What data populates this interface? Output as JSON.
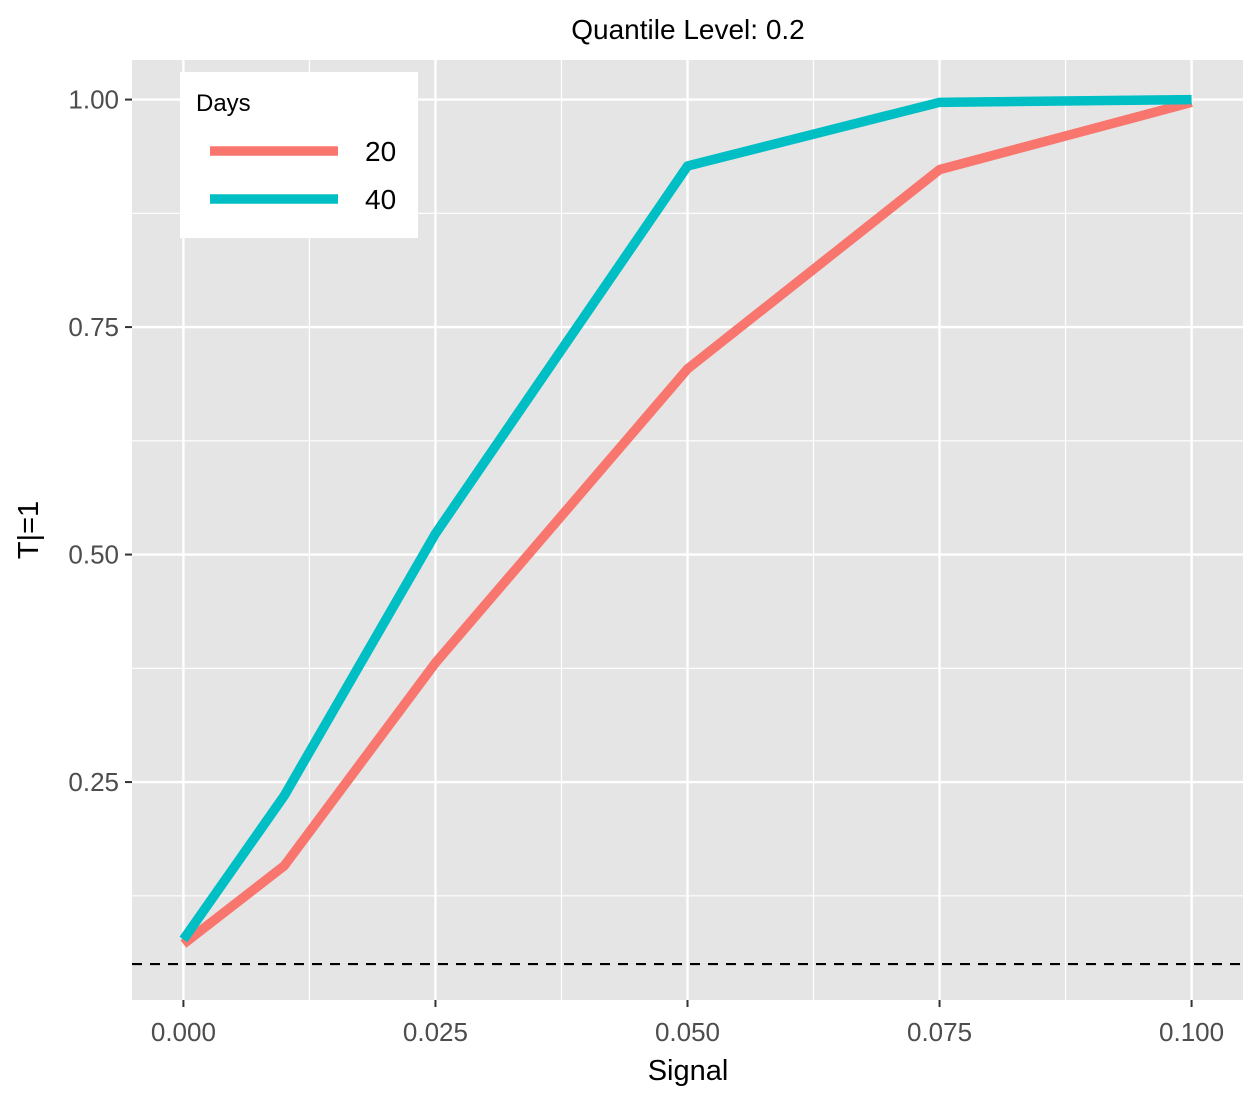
{
  "chart_data": {
    "type": "line",
    "title": "Quantile Level: 0.2",
    "xlabel": "Signal",
    "ylabel": "T|=1",
    "x": [
      0.0,
      0.01,
      0.025,
      0.05,
      0.075,
      0.1
    ],
    "series": [
      {
        "name": "20",
        "color": "#F8766D",
        "values": [
          0.072,
          0.158,
          0.381,
          0.704,
          0.923,
          0.997
        ]
      },
      {
        "name": "40",
        "color": "#00BFC4",
        "values": [
          0.077,
          0.235,
          0.523,
          0.927,
          0.997,
          1.0
        ]
      }
    ],
    "reference_line": {
      "y": 0.05,
      "style": "dashed",
      "color": "#000000"
    },
    "xlim": [
      -0.0051,
      0.1051
    ],
    "ylim": [
      0.0105,
      1.0435
    ],
    "x_ticks": [
      0.0,
      0.025,
      0.05,
      0.075,
      0.1
    ],
    "x_tick_labels": [
      "0.000",
      "0.025",
      "0.050",
      "0.075",
      "0.100"
    ],
    "y_ticks": [
      0.25,
      0.5,
      0.75,
      1.0
    ],
    "y_tick_labels": [
      "0.25",
      "0.50",
      "0.75",
      "1.00"
    ],
    "legend": {
      "title": "Days",
      "placement": "top-left"
    },
    "grid": true,
    "panel_background": "#E5E5E5",
    "grid_color": "#FFFFFF"
  }
}
